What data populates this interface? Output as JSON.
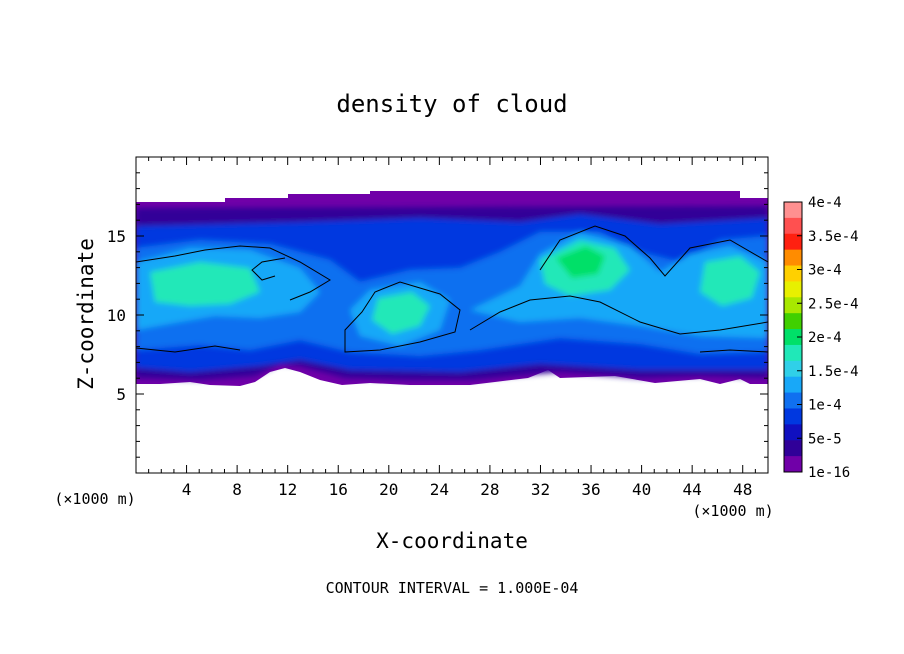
{
  "chart_data": {
    "type": "heatmap",
    "title": "density of cloud",
    "xlabel": "X-coordinate",
    "ylabel": "Z-coordinate",
    "x_unit": "(×1000 m)",
    "y_unit": "(×1000 m)",
    "xlim": [
      0,
      50
    ],
    "ylim": [
      0,
      20
    ],
    "x_ticks": [
      "4",
      "8",
      "12",
      "16",
      "20",
      "24",
      "28",
      "32",
      "36",
      "40",
      "44",
      "48"
    ],
    "y_ticks": [
      "5",
      "10",
      "15"
    ],
    "colorbar": {
      "labels": [
        "4e-4",
        "3.5e-4",
        "3e-4",
        "2.5e-4",
        "2e-4",
        "1.5e-4",
        "1e-4",
        "5e-5",
        "1e-16"
      ],
      "colors": [
        "#ff9090",
        "#ff5050",
        "#ff2010",
        "#ff8c00",
        "#ffd000",
        "#e8f000",
        "#a8e800",
        "#40d000",
        "#00e068",
        "#20e8b8",
        "#30d0e8",
        "#18a8f8",
        "#1070f0",
        "#0038e0",
        "#1010c0",
        "#300098",
        "#7000a8"
      ]
    },
    "footer": "CONTOUR INTERVAL = 1.000E-04"
  }
}
